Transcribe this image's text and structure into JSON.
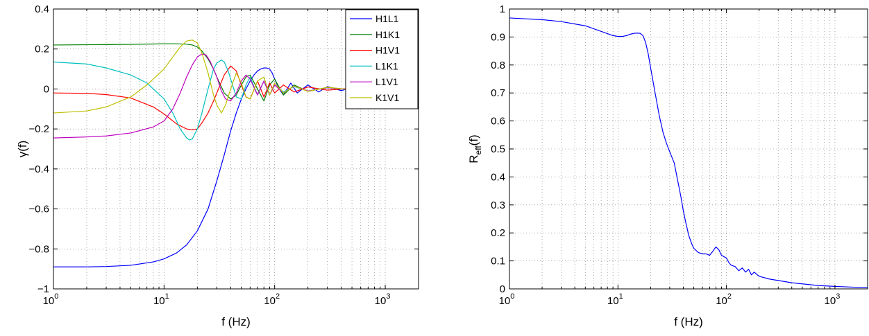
{
  "chart_data": [
    {
      "type": "line",
      "xlabel": "f (Hz)",
      "ylabel": "γ(f)",
      "xscale": "log",
      "xlim": [
        1,
        2000
      ],
      "ylim": [
        -1,
        0.4
      ],
      "yticks": [
        "0.4",
        "0.2",
        "0",
        "−0.2",
        "−0.4",
        "−0.6",
        "−0.8",
        "−1"
      ],
      "xticks": [
        {
          "base": "10",
          "exp": "0"
        },
        {
          "base": "10",
          "exp": "1"
        },
        {
          "base": "10",
          "exp": "2"
        },
        {
          "base": "10",
          "exp": "3"
        }
      ],
      "grid": true,
      "legend": "top-right",
      "series": [
        {
          "name": "H1L1",
          "color": "#0000ff",
          "x": [
            1,
            2,
            3,
            5,
            8,
            10,
            13,
            16,
            20,
            25,
            30,
            35,
            40,
            45,
            50,
            55,
            60,
            65,
            70,
            75,
            80,
            85,
            90,
            95,
            100,
            110,
            120,
            140,
            160,
            200,
            250,
            300,
            400,
            500,
            700,
            1000,
            2000
          ],
          "y": [
            -0.89,
            -0.89,
            -0.888,
            -0.882,
            -0.865,
            -0.85,
            -0.82,
            -0.78,
            -0.71,
            -0.6,
            -0.46,
            -0.33,
            -0.21,
            -0.12,
            -0.05,
            0.0,
            0.04,
            0.07,
            0.09,
            0.1,
            0.105,
            0.105,
            0.1,
            0.08,
            0.05,
            0.0,
            -0.03,
            0.03,
            -0.02,
            0.02,
            -0.015,
            0.012,
            -0.008,
            0.006,
            -0.004,
            0.003,
            0.0
          ]
        },
        {
          "name": "H1K1",
          "color": "#008000",
          "x": [
            1,
            3,
            5,
            8,
            10,
            13,
            16,
            18,
            20,
            22,
            25,
            28,
            30,
            35,
            40,
            45,
            50,
            55,
            60,
            70,
            80,
            90,
            100,
            120,
            150,
            200,
            300,
            500,
            1000,
            2000
          ],
          "y": [
            0.22,
            0.222,
            0.223,
            0.225,
            0.226,
            0.226,
            0.224,
            0.22,
            0.21,
            0.19,
            0.15,
            0.1,
            0.06,
            -0.02,
            -0.05,
            -0.03,
            0.02,
            0.06,
            0.07,
            0.0,
            -0.06,
            0.02,
            0.05,
            -0.03,
            0.02,
            -0.012,
            0.008,
            -0.004,
            0.002,
            0.0
          ]
        },
        {
          "name": "H1V1",
          "color": "#ff0000",
          "x": [
            1,
            2,
            3,
            5,
            8,
            10,
            13,
            16,
            18,
            20,
            22,
            25,
            28,
            30,
            35,
            40,
            45,
            50,
            55,
            60,
            70,
            80,
            90,
            100,
            120,
            150,
            200,
            300,
            500,
            1000,
            2000
          ],
          "y": [
            -0.02,
            -0.022,
            -0.028,
            -0.045,
            -0.09,
            -0.125,
            -0.175,
            -0.2,
            -0.205,
            -0.2,
            -0.17,
            -0.12,
            -0.06,
            -0.02,
            0.07,
            0.115,
            0.09,
            0.02,
            -0.04,
            -0.05,
            0.04,
            -0.04,
            0.03,
            -0.02,
            0.02,
            -0.015,
            0.01,
            -0.006,
            0.004,
            -0.002,
            0.0
          ]
        },
        {
          "name": "L1K1",
          "color": "#00bfbf",
          "x": [
            1,
            2,
            3,
            5,
            7,
            10,
            12,
            14,
            16,
            17,
            18,
            20,
            22,
            25,
            28,
            30,
            33,
            35,
            38,
            40,
            45,
            50,
            55,
            60,
            70,
            80,
            90,
            100,
            120,
            150,
            200,
            300,
            500,
            1000,
            2000
          ],
          "y": [
            0.135,
            0.125,
            0.105,
            0.07,
            0.03,
            -0.05,
            -0.12,
            -0.2,
            -0.245,
            -0.255,
            -0.25,
            -0.2,
            -0.12,
            0.0,
            0.1,
            0.13,
            0.145,
            0.135,
            0.09,
            0.05,
            -0.04,
            -0.05,
            0.02,
            0.06,
            -0.03,
            0.04,
            -0.03,
            0.02,
            -0.015,
            0.012,
            -0.01,
            0.006,
            -0.004,
            0.002,
            0.0
          ]
        },
        {
          "name": "L1V1",
          "color": "#bf00bf",
          "x": [
            1,
            2,
            3,
            5,
            8,
            10,
            12,
            14,
            16,
            18,
            20,
            22,
            24,
            26,
            28,
            30,
            33,
            36,
            40,
            45,
            50,
            55,
            60,
            70,
            80,
            90,
            100,
            120,
            150,
            200,
            300,
            500,
            1000,
            2000
          ],
          "y": [
            -0.245,
            -0.24,
            -0.235,
            -0.22,
            -0.19,
            -0.16,
            -0.1,
            -0.02,
            0.06,
            0.12,
            0.16,
            0.175,
            0.17,
            0.14,
            0.1,
            0.06,
            -0.01,
            -0.05,
            -0.06,
            -0.02,
            0.04,
            0.07,
            0.05,
            -0.03,
            0.04,
            -0.03,
            0.02,
            -0.02,
            0.015,
            -0.01,
            0.006,
            -0.004,
            0.002,
            0.0
          ]
        },
        {
          "name": "K1V1",
          "color": "#bfbf00",
          "x": [
            1,
            2,
            3,
            5,
            7,
            10,
            12,
            14,
            16,
            18,
            20,
            22,
            25,
            28,
            30,
            33,
            36,
            40,
            45,
            50,
            55,
            60,
            70,
            80,
            90,
            100,
            120,
            150,
            200,
            300,
            500,
            1000,
            2000
          ],
          "y": [
            -0.12,
            -0.11,
            -0.09,
            -0.04,
            0.02,
            0.1,
            0.16,
            0.21,
            0.24,
            0.245,
            0.23,
            0.18,
            0.08,
            -0.03,
            -0.08,
            -0.12,
            -0.08,
            0.0,
            0.08,
            0.03,
            -0.04,
            -0.05,
            0.04,
            0.06,
            -0.03,
            0.03,
            -0.02,
            0.015,
            -0.012,
            0.008,
            -0.004,
            0.002,
            0.0
          ]
        }
      ]
    },
    {
      "type": "line",
      "xlabel": "f (Hz)",
      "ylabel": {
        "base": "R",
        "sub": "eff",
        "suffix": "(f)"
      },
      "xscale": "log",
      "xlim": [
        1,
        2000
      ],
      "ylim": [
        0,
        1
      ],
      "yticks": [
        "1",
        "0.9",
        "0.8",
        "0.7",
        "0.6",
        "0.5",
        "0.4",
        "0.3",
        "0.2",
        "0.1",
        "0"
      ],
      "xticks": [
        {
          "base": "10",
          "exp": "0"
        },
        {
          "base": "10",
          "exp": "1"
        },
        {
          "base": "10",
          "exp": "2"
        },
        {
          "base": "10",
          "exp": "3"
        }
      ],
      "grid": true,
      "series": [
        {
          "color": "#0000ff",
          "x": [
            1,
            2,
            3,
            5,
            7,
            9,
            10,
            11,
            12,
            13,
            14,
            15,
            16,
            17,
            18,
            19,
            20,
            22,
            24,
            26,
            28,
            30,
            33,
            35,
            38,
            40,
            42,
            45,
            48,
            50,
            55,
            60,
            65,
            70,
            75,
            80,
            85,
            90,
            95,
            100,
            105,
            110,
            120,
            130,
            140,
            150,
            160,
            170,
            180,
            200,
            250,
            300,
            400,
            500,
            700,
            1000,
            1500,
            2000
          ],
          "y": [
            0.968,
            0.962,
            0.955,
            0.94,
            0.92,
            0.905,
            0.902,
            0.902,
            0.905,
            0.91,
            0.913,
            0.914,
            0.913,
            0.905,
            0.88,
            0.84,
            0.79,
            0.7,
            0.62,
            0.56,
            0.52,
            0.49,
            0.45,
            0.4,
            0.33,
            0.28,
            0.24,
            0.19,
            0.16,
            0.145,
            0.13,
            0.125,
            0.125,
            0.12,
            0.135,
            0.15,
            0.14,
            0.12,
            0.115,
            0.11,
            0.095,
            0.085,
            0.08,
            0.065,
            0.075,
            0.06,
            0.07,
            0.05,
            0.06,
            0.045,
            0.035,
            0.03,
            0.022,
            0.018,
            0.012,
            0.009,
            0.006,
            0.004
          ]
        }
      ]
    }
  ]
}
